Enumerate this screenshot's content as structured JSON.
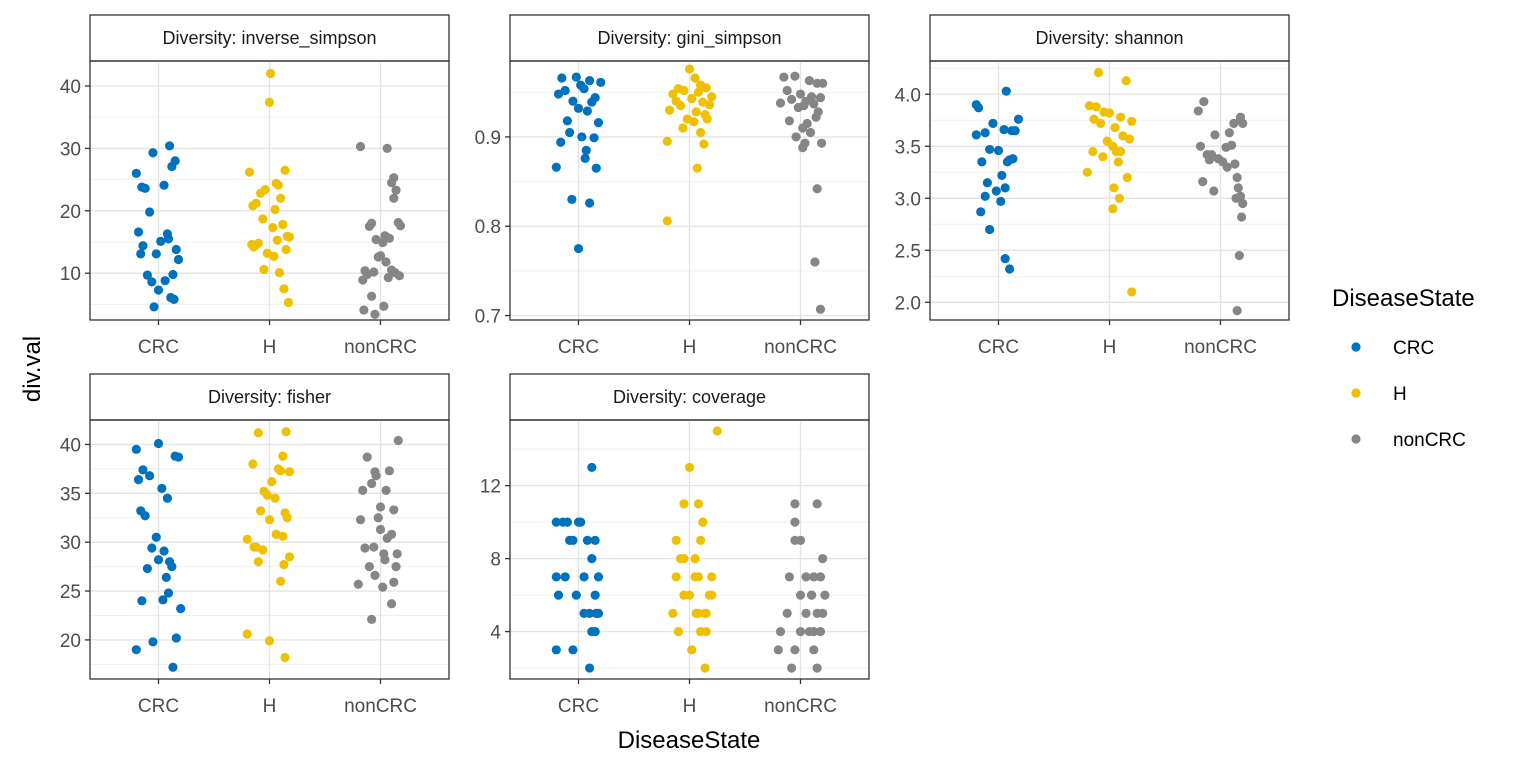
{
  "chart_data": {
    "type": "scatter",
    "xlabel": "DiseaseState",
    "ylabel": "div.val",
    "categories": [
      "CRC",
      "H",
      "nonCRC"
    ],
    "colors": {
      "CRC": "#0072BD",
      "H": "#EFC000",
      "nonCRC": "#868686"
    },
    "legend": {
      "title": "DiseaseState",
      "position": "right",
      "items": [
        "CRC",
        "H",
        "nonCRC"
      ]
    },
    "grid": true,
    "panels": [
      {
        "strip_label": "Diversity: inverse_simpson",
        "ylim": [
          2.5,
          44
        ],
        "yticks": [
          10,
          20,
          30,
          40
        ],
        "series": [
          {
            "name": "CRC",
            "x": [
              -0.2,
              -0.15,
              0.1,
              -0.05,
              0.15,
              -0.18,
              0.12,
              -0.12,
              0.05,
              0.18,
              -0.08,
              0.02,
              -0.14,
              0.16,
              -0.02,
              0.08,
              -0.16,
              0.13,
              -0.1,
              0.06,
              0.0,
              0.11,
              -0.06,
              0.14,
              -0.04,
              0.09
            ],
            "y": [
              26,
              23.8,
              30.4,
              29.3,
              28,
              16.6,
              27.1,
              23.6,
              24.1,
              12.2,
              19.8,
              15.1,
              14.4,
              13.8,
              13.1,
              16.3,
              13.1,
              9.8,
              9.7,
              8.8,
              7.3,
              6.1,
              8.6,
              5.8,
              4.6,
              15.5
            ]
          },
          {
            "name": "H",
            "x": [
              0.0,
              -0.18,
              -0.15,
              -0.08,
              0.06,
              0.08,
              -0.04,
              -0.12,
              0.1,
              0.14,
              0.05,
              -0.06,
              0.12,
              -0.16,
              0.03,
              0.16,
              -0.1,
              0.07,
              0.18,
              -0.14,
              -0.02,
              0.04,
              0.15,
              -0.05,
              0.09,
              0.13,
              0.17,
              0.01
            ],
            "y": [
              37.4,
              26.2,
              20.8,
              22.8,
              24.4,
              24.1,
              23.4,
              21.2,
              22,
              26.5,
              20.2,
              18.7,
              17.8,
              14.6,
              17.3,
              15.9,
              14.8,
              15.3,
              15.8,
              14.2,
              13.2,
              12.7,
              13.8,
              10.6,
              10.1,
              7.5,
              5.3,
              42
            ]
          },
          {
            "name": "nonCRC",
            "x": [
              -0.18,
              0.06,
              0.12,
              0.1,
              0.14,
              -0.08,
              -0.1,
              0.16,
              0.18,
              0.04,
              0.08,
              -0.04,
              0.02,
              -0.02,
              0.0,
              0.05,
              -0.14,
              -0.12,
              -0.16,
              0.1,
              -0.06,
              0.07,
              0.13,
              -0.08,
              0.17,
              0.03,
              -0.15,
              -0.05,
              0.12
            ],
            "y": [
              30.3,
              30,
              25.3,
              24.5,
              23.3,
              18,
              17.5,
              18.1,
              17.6,
              16,
              15.6,
              15.4,
              14.9,
              12.6,
              12.8,
              11.8,
              10.4,
              9.8,
              8.9,
              10.5,
              10.2,
              9.3,
              10.1,
              6.3,
              9.6,
              4.7,
              4.1,
              3.4,
              22
            ]
          }
        ]
      },
      {
        "strip_label": "Diversity: gini_simpson",
        "ylim": [
          0.695,
          0.985
        ],
        "yticks": [
          0.7,
          0.8,
          0.9
        ],
        "series": [
          {
            "name": "CRC",
            "x": [
              -0.15,
              -0.02,
              0.1,
              0.2,
              -0.12,
              0.02,
              0.05,
              0.15,
              -0.18,
              -0.05,
              0.12,
              0.0,
              0.08,
              -0.1,
              0.18,
              -0.08,
              0.03,
              0.14,
              -0.16,
              0.06,
              0.16,
              -0.2,
              -0.06,
              0.1,
              0.07,
              0.0
            ],
            "y": [
              0.966,
              0.967,
              0.963,
              0.961,
              0.952,
              0.958,
              0.954,
              0.944,
              0.948,
              0.94,
              0.939,
              0.932,
              0.929,
              0.918,
              0.916,
              0.905,
              0.9,
              0.899,
              0.894,
              0.876,
              0.865,
              0.866,
              0.83,
              0.826,
              0.885,
              0.775
            ]
          },
          {
            "name": "H",
            "x": [
              0.0,
              0.05,
              0.1,
              -0.1,
              -0.05,
              0.15,
              0.08,
              -0.15,
              0.2,
              0.02,
              -0.12,
              0.12,
              -0.08,
              0.18,
              -0.18,
              0.06,
              0.14,
              -0.02,
              0.04,
              0.16,
              -0.06,
              0.1,
              -0.2,
              0.13,
              0.07,
              -0.2
            ],
            "y": [
              0.976,
              0.966,
              0.958,
              0.954,
              0.952,
              0.955,
              0.95,
              0.948,
              0.945,
              0.943,
              0.94,
              0.939,
              0.935,
              0.936,
              0.93,
              0.928,
              0.925,
              0.92,
              0.917,
              0.92,
              0.91,
              0.905,
              0.895,
              0.892,
              0.865,
              0.806
            ]
          },
          {
            "name": "nonCRC",
            "x": [
              -0.15,
              -0.05,
              0.08,
              0.15,
              0.2,
              -0.12,
              0.0,
              0.1,
              0.18,
              -0.08,
              0.05,
              0.12,
              -0.18,
              0.03,
              -0.02,
              0.16,
              0.14,
              -0.1,
              0.06,
              0.02,
              0.09,
              -0.04,
              0.04,
              0.19,
              0.02,
              0.15,
              0.13,
              0.18
            ],
            "y": [
              0.967,
              0.968,
              0.963,
              0.96,
              0.96,
              0.952,
              0.948,
              0.945,
              0.944,
              0.942,
              0.94,
              0.937,
              0.938,
              0.935,
              0.933,
              0.928,
              0.922,
              0.918,
              0.915,
              0.91,
              0.905,
              0.9,
              0.893,
              0.893,
              0.888,
              0.842,
              0.76,
              0.707
            ]
          }
        ]
      },
      {
        "strip_label": "Diversity: shannon",
        "ylim": [
          1.83,
          4.32
        ],
        "yticks": [
          2.0,
          2.5,
          3.0,
          3.5,
          4.0
        ],
        "series": [
          {
            "name": "CRC",
            "x": [
              0.07,
              -0.2,
              -0.18,
              -0.05,
              0.05,
              0.18,
              -0.12,
              0.12,
              -0.2,
              0.15,
              0.0,
              0.1,
              -0.08,
              0.08,
              0.13,
              -0.15,
              0.03,
              -0.1,
              -0.02,
              0.06,
              -0.12,
              -0.16,
              0.02,
              -0.08,
              0.06,
              0.1
            ],
            "y": [
              4.03,
              3.9,
              3.87,
              3.72,
              3.66,
              3.76,
              3.63,
              3.65,
              3.61,
              3.65,
              3.46,
              3.37,
              3.47,
              3.35,
              3.38,
              3.35,
              3.22,
              3.15,
              3.07,
              3.1,
              3.02,
              2.87,
              2.97,
              2.7,
              2.42,
              2.32
            ]
          },
          {
            "name": "H",
            "x": [
              -0.1,
              -0.18,
              -0.12,
              -0.05,
              0.0,
              0.1,
              0.15,
              0.2,
              -0.14,
              -0.08,
              0.05,
              0.12,
              -0.02,
              0.18,
              -0.15,
              0.03,
              0.06,
              -0.06,
              0.1,
              0.08,
              -0.2,
              0.16,
              0.04,
              0.09,
              0.03,
              0.2
            ],
            "y": [
              4.21,
              3.89,
              3.88,
              3.83,
              3.82,
              3.78,
              4.13,
              3.74,
              3.76,
              3.72,
              3.68,
              3.6,
              3.55,
              3.57,
              3.45,
              3.5,
              3.45,
              3.4,
              3.45,
              3.35,
              3.25,
              3.2,
              3.1,
              3.0,
              2.9,
              2.1
            ]
          },
          {
            "name": "nonCRC",
            "x": [
              -0.15,
              -0.2,
              0.08,
              -0.05,
              0.18,
              0.2,
              0.12,
              -0.18,
              0.1,
              0.05,
              -0.12,
              -0.08,
              0.02,
              -0.02,
              0.06,
              -0.1,
              0.15,
              0.13,
              -0.16,
              0.16,
              0.18,
              -0.06,
              0.14,
              0.2,
              0.19,
              0.17,
              0.15,
              0.18
            ],
            "y": [
              3.93,
              3.84,
              3.63,
              3.61,
              3.78,
              3.72,
              3.72,
              3.5,
              3.51,
              3.49,
              3.42,
              3.42,
              3.35,
              3.38,
              3.3,
              3.37,
              3.2,
              3.33,
              3.16,
              3.1,
              3.02,
              3.07,
              3.0,
              2.95,
              2.82,
              2.45,
              1.92,
              3.75
            ]
          }
        ]
      },
      {
        "strip_label": "Diversity: fisher",
        "ylim": [
          16,
          42.5
        ],
        "yticks": [
          20,
          25,
          30,
          35,
          40
        ],
        "series": [
          {
            "name": "CRC",
            "x": [
              0.0,
              -0.2,
              -0.14,
              -0.18,
              0.15,
              -0.08,
              0.03,
              -0.16,
              0.08,
              -0.12,
              0.18,
              0.2,
              -0.02,
              0.05,
              0.1,
              -0.06,
              0.0,
              0.12,
              -0.1,
              0.07,
              0.09,
              -0.15,
              0.04,
              0.16,
              -0.2,
              0.13,
              -0.05
            ],
            "y": [
              40.1,
              39.5,
              37.4,
              36.4,
              38.8,
              36.8,
              35.5,
              33.2,
              34.5,
              32.7,
              38.7,
              23.2,
              30.5,
              29.1,
              28,
              29.4,
              28.2,
              27.5,
              27.3,
              26.4,
              24.8,
              24,
              24.1,
              20.2,
              19,
              17.2,
              19.8
            ]
          },
          {
            "name": "H",
            "x": [
              -0.1,
              0.15,
              0.12,
              -0.15,
              0.08,
              0.18,
              0.1,
              -0.05,
              0.02,
              0.05,
              -0.08,
              0.14,
              0.16,
              -0.2,
              0.0,
              0.06,
              0.12,
              -0.12,
              -0.06,
              -0.14,
              0.18,
              0.1,
              -0.1,
              0.13,
              -0.2,
              0.0,
              0.14,
              -0.02
            ],
            "y": [
              41.2,
              41.3,
              38.8,
              38,
              37.5,
              37.2,
              37.3,
              35.2,
              36.2,
              34.5,
              33.2,
              33,
              32.5,
              30.3,
              32.3,
              30.8,
              30.6,
              29.5,
              29.2,
              29.5,
              28.5,
              26,
              28,
              27.7,
              20.6,
              19.9,
              18.2,
              34.8
            ]
          },
          {
            "name": "nonCRC",
            "x": [
              0.16,
              -0.12,
              -0.05,
              -0.04,
              0.08,
              -0.08,
              0.05,
              -0.16,
              0.0,
              0.12,
              -0.18,
              -0.02,
              0.0,
              0.1,
              0.06,
              -0.06,
              -0.14,
              0.03,
              0.15,
              0.04,
              0.14,
              -0.1,
              -0.05,
              0.12,
              -0.2,
              0.02,
              0.1,
              -0.08
            ],
            "y": [
              40.4,
              38.7,
              37.2,
              36.8,
              37.3,
              36,
              35.3,
              35.3,
              33.6,
              33.3,
              32.3,
              32.5,
              31.3,
              30.8,
              30.4,
              29.5,
              29.4,
              28.8,
              28.8,
              28.2,
              27.5,
              27.5,
              26.6,
              25.9,
              25.7,
              25.4,
              23.7,
              22.1
            ]
          }
        ]
      },
      {
        "strip_label": "Diversity: coverage",
        "ylim": [
          1.4,
          15.6
        ],
        "yticks": [
          4,
          8,
          12
        ],
        "series": [
          {
            "name": "CRC",
            "x": [
              0.12,
              -0.2,
              -0.14,
              -0.1,
              0.02,
              0.0,
              -0.05,
              0.08,
              0.15,
              -0.08,
              0.12,
              -0.2,
              -0.12,
              0.18,
              0.05,
              -0.18,
              0.15,
              -0.02,
              0.05,
              0.1,
              0.18,
              0.15,
              0.12,
              -0.2,
              -0.05,
              0.1,
              0.16
            ],
            "y": [
              13,
              10,
              10,
              10,
              10,
              10,
              9,
              9,
              9,
              9,
              8,
              7,
              7,
              7,
              7,
              6,
              6,
              6,
              5,
              5,
              5,
              4,
              4,
              3,
              3,
              2,
              5
            ]
          },
          {
            "name": "H",
            "x": [
              0.25,
              0.0,
              -0.05,
              0.08,
              0.12,
              -0.12,
              0.1,
              -0.08,
              -0.05,
              0.05,
              0.08,
              0.2,
              -0.12,
              -0.05,
              0.0,
              0.18,
              -0.15,
              0.06,
              0.14,
              0.08,
              0.15,
              0.15,
              -0.1,
              0.1,
              0.02,
              0.2,
              0.14,
              0.05
            ],
            "y": [
              15,
              13,
              11,
              11,
              10,
              9,
              9,
              8,
              8,
              8,
              7,
              7,
              7,
              6,
              6,
              6,
              5,
              5,
              5,
              5,
              5,
              4,
              4,
              4,
              3,
              6,
              2,
              7
            ]
          },
          {
            "name": "nonCRC",
            "x": [
              -0.05,
              0.15,
              -0.05,
              0.0,
              -0.05,
              0.2,
              0.12,
              0.18,
              0.05,
              -0.1,
              0.1,
              0.22,
              0.0,
              0.05,
              0.15,
              0.2,
              -0.12,
              0.12,
              0.0,
              0.08,
              -0.18,
              0.18,
              0.12,
              -0.05,
              0.15,
              -0.2,
              -0.08,
              0.1
            ],
            "y": [
              11,
              11,
              10,
              9,
              9,
              8,
              7,
              7,
              7,
              7,
              6,
              6,
              6,
              5,
              5,
              5,
              5,
              4,
              4,
              4,
              4,
              4,
              3,
              3,
              2,
              3,
              2,
              6
            ]
          }
        ]
      }
    ]
  }
}
